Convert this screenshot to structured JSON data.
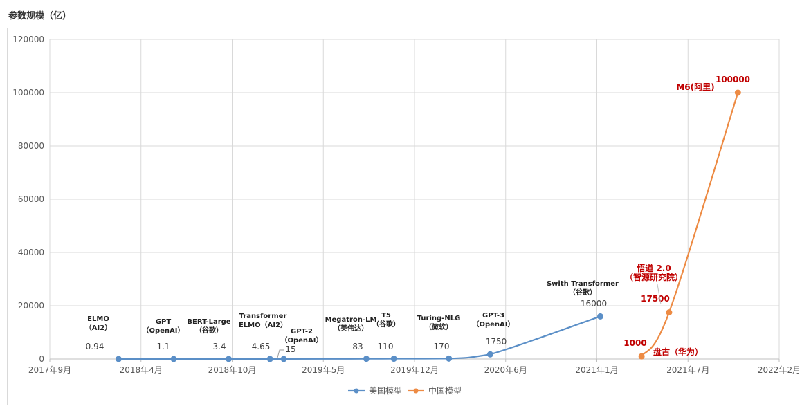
{
  "title": "参数规模（亿）",
  "chart_data": {
    "type": "line",
    "ylim": [
      0,
      120000
    ],
    "yticks": [
      "0",
      "20000",
      "40000",
      "60000",
      "80000",
      "100000",
      "120000"
    ],
    "xticks": [
      "2017年9月",
      "2018年4月",
      "2018年10月",
      "2019年5月",
      "2019年12月",
      "2020年6月",
      "2021年1月",
      "2021年7月",
      "2022年2月"
    ],
    "grid": true,
    "legend_position": "bottom",
    "series": [
      {
        "name": "美国模型",
        "color": "#5b8fc7",
        "points": [
          {
            "date": "2018-02",
            "y": 0.94,
            "value_label": "0.94",
            "model": [
              "ELMO",
              "（AI2）"
            ]
          },
          {
            "date": "2018-06",
            "y": 1.1,
            "value_label": "1.1",
            "model": [
              "GPT",
              "（OpenAI）"
            ]
          },
          {
            "date": "2018-10",
            "y": 3.4,
            "value_label": "3.4",
            "model": [
              "BERT-Large",
              "（谷歌）"
            ]
          },
          {
            "date": "2019-01",
            "y": 4.65,
            "value_label": "4.65",
            "model": [
              "Transformer",
              "ELMO（AI2）"
            ]
          },
          {
            "date": "2019-02",
            "y": 15,
            "value_label": "15",
            "model": [
              "GPT-2",
              "（OpenAI）"
            ]
          },
          {
            "date": "2019-08",
            "y": 83,
            "value_label": "83",
            "model": [
              "Megatron-LM",
              "（英伟达）"
            ]
          },
          {
            "date": "2019-10",
            "y": 110,
            "value_label": "110",
            "model": [
              "T5",
              "（谷歌）"
            ]
          },
          {
            "date": "2020-02",
            "y": 170,
            "value_label": "170",
            "model": [
              "Turing-NLG",
              "（微软）"
            ]
          },
          {
            "date": "2020-05",
            "y": 1750,
            "value_label": "1750",
            "model": [
              "GPT-3",
              "（OpenAI）"
            ]
          },
          {
            "date": "2021-01",
            "y": 16000,
            "value_label": "16000",
            "model": [
              "Swith Transformer",
              "（谷歌）"
            ]
          }
        ]
      },
      {
        "name": "中国模型",
        "color": "#ed8b44",
        "points": [
          {
            "date": "2021-04",
            "y": 1000,
            "value_label": "1000",
            "model": [
              "盘古（华为）"
            ]
          },
          {
            "date": "2021-06",
            "y": 17500,
            "value_label": "17500",
            "model": [
              "悟道 2.0",
              "（智源研究院）"
            ]
          },
          {
            "date": "2021-11",
            "y": 100000,
            "value_label": "100000",
            "model": [
              "M6(阿里)"
            ]
          }
        ]
      }
    ]
  }
}
